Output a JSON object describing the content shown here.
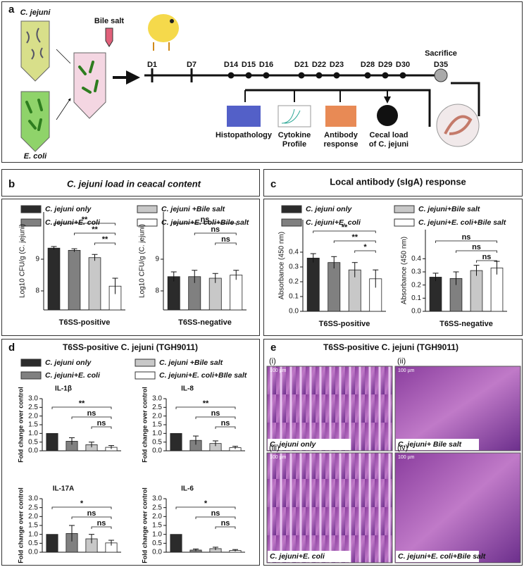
{
  "panel_a": {
    "label": "a",
    "strain": "C. jejuni",
    "bile": "Bile salt",
    "ecoli": "E. coli",
    "days": [
      "D1",
      "D7",
      "D14",
      "D15",
      "D16",
      "D21",
      "D22",
      "D23",
      "D28",
      "D29",
      "D30"
    ],
    "sacrifice": "Sacrifice",
    "end_day": "D35",
    "outputs": [
      [
        "Histopathology"
      ],
      [
        "Cytokine",
        "Profile"
      ],
      [
        "Antibody",
        "response"
      ],
      [
        "Cecal load",
        "of C. jejuni"
      ]
    ]
  },
  "panels": {
    "b": {
      "label": "b",
      "title": "C. jejuni load in ceacal content",
      "legend": [
        {
          "name": "C. jejuni only",
          "color": "#2b2b2b"
        },
        {
          "name": "C. jejuni +Bile salt",
          "color": "#c8c8c8"
        },
        {
          "name": "C. jejuni+E. coli",
          "color": "#808080"
        },
        {
          "name": "C. jejuni+E. coli+Bile salt",
          "color": "#ffffff"
        }
      ]
    },
    "c": {
      "label": "c",
      "title": "Local antibody (sIgA) response",
      "legend": [
        {
          "name": "C. jejuni only",
          "color": "#2b2b2b"
        },
        {
          "name": "C. jejuni+Bile salt",
          "color": "#c8c8c8"
        },
        {
          "name": "C. jejuni+E. coli",
          "color": "#808080"
        },
        {
          "name": "C. jejuni+E. coli+Bile salt",
          "color": "#ffffff"
        }
      ]
    },
    "d": {
      "label": "d",
      "title": "T6SS-positive  C. jejuni (TGH9011)",
      "legend": [
        {
          "name": "C. jejuni only",
          "color": "#2b2b2b"
        },
        {
          "name": "C. jejuni +Bile salt",
          "color": "#c8c8c8"
        },
        {
          "name": "C. jejuni+E. coli",
          "color": "#808080"
        },
        {
          "name": "C. jejuni+E. coli+BIle salt",
          "color": "#ffffff"
        }
      ]
    }
  },
  "panel_e": {
    "label": "e",
    "title": "T6SS-positive  C. jejuni (TGH9011)",
    "scale": "100 µm",
    "images": [
      {
        "index": "(i)",
        "caption": "C. jejuni only"
      },
      {
        "index": "(ii)",
        "caption": "C. jejuni+ Bile salt"
      },
      {
        "index": "(iii)",
        "caption": "C. jejuni+E. coli"
      },
      {
        "index": "(iv)",
        "caption": "C. jejuni+E. coli+Bile salt"
      }
    ]
  },
  "chart_data": [
    {
      "type": "bar",
      "categories": [
        null,
        null,
        null,
        null
      ],
      "values": [
        9.35,
        9.28,
        9.05,
        8.15
      ],
      "errors": [
        0.05,
        0.05,
        0.1,
        0.25
      ],
      "colors": [
        "#2b2b2b",
        "#808080",
        "#c8c8c8",
        "#ffffff"
      ],
      "ylim": [
        7.4,
        10.4
      ],
      "yticks": [
        8,
        9
      ],
      "y_label": "Log10 CFU/g (C. jejuni)",
      "x_label": "T6SS-positive",
      "annotations": [
        "**",
        "**",
        "**"
      ]
    },
    {
      "type": "bar",
      "categories": [
        null,
        null,
        null,
        null
      ],
      "values": [
        8.45,
        8.45,
        8.4,
        8.5
      ],
      "errors": [
        0.15,
        0.2,
        0.15,
        0.15
      ],
      "colors": [
        "#2b2b2b",
        "#808080",
        "#c8c8c8",
        "#ffffff"
      ],
      "ylim": [
        7.4,
        10.4
      ],
      "yticks": [
        8,
        9
      ],
      "y_label": "Log10 CFU/g (C. jejuni)",
      "x_label": "T6SS-negative",
      "annotations": [
        "ns",
        "ns",
        "ns"
      ]
    },
    {
      "type": "bar",
      "categories": [
        null,
        null,
        null,
        null
      ],
      "values": [
        0.36,
        0.33,
        0.28,
        0.22
      ],
      "errors": [
        0.03,
        0.04,
        0.05,
        0.06
      ],
      "colors": [
        "#2b2b2b",
        "#808080",
        "#c8c8c8",
        "#ffffff"
      ],
      "ylim": [
        0,
        0.6
      ],
      "yticks": [
        {
          "value": 0,
          "label": "0.0"
        },
        0.1,
        0.2,
        0.3,
        0.4
      ],
      "y_label": "Absorbance (450 nm)",
      "x_label": "T6SS-positive",
      "annotations": [
        "**",
        "**",
        "*"
      ]
    },
    {
      "type": "bar",
      "categories": [
        null,
        null,
        null,
        null
      ],
      "values": [
        0.26,
        0.25,
        0.31,
        0.33
      ],
      "errors": [
        0.03,
        0.05,
        0.04,
        0.05
      ],
      "colors": [
        "#2b2b2b",
        "#808080",
        "#c8c8c8",
        "#ffffff"
      ],
      "ylim": [
        0,
        0.6
      ],
      "yticks": [
        {
          "value": 0,
          "label": "0.0"
        },
        0.1,
        0.2,
        0.3,
        0.4
      ],
      "y_label": "Absorbance (450 nm)",
      "x_label": "T6SS-negative",
      "annotations": [
        "ns",
        "ns",
        "ns"
      ]
    },
    {
      "type": "bar",
      "title": "IL-1β",
      "categories": [
        null,
        null,
        null,
        null
      ],
      "values": [
        1.0,
        0.55,
        0.35,
        0.2
      ],
      "errors": [
        0,
        0.2,
        0.15,
        0.1
      ],
      "colors": [
        "#2b2b2b",
        "#808080",
        "#c8c8c8",
        "#ffffff"
      ],
      "ylim": [
        0,
        3
      ],
      "yticks": [
        {
          "value": 0,
          "label": "0.0"
        },
        0.5,
        {
          "value": 1,
          "label": "1.0"
        },
        1.5,
        {
          "value": 2,
          "label": "2.0"
        },
        2.5,
        {
          "value": 3,
          "label": "3.0"
        }
      ],
      "y_label": "Fold change over control",
      "annotations": [
        "**",
        "ns",
        "ns"
      ]
    },
    {
      "type": "bar",
      "title": "IL-8",
      "categories": [
        null,
        null,
        null,
        null
      ],
      "values": [
        1.0,
        0.6,
        0.42,
        0.18
      ],
      "errors": [
        0,
        0.25,
        0.15,
        0.08
      ],
      "colors": [
        "#2b2b2b",
        "#808080",
        "#c8c8c8",
        "#ffffff"
      ],
      "ylim": [
        0,
        3
      ],
      "yticks": [
        {
          "value": 0,
          "label": "0.0"
        },
        0.5,
        {
          "value": 1,
          "label": "1.0"
        },
        1.5,
        {
          "value": 2,
          "label": "2.0"
        },
        2.5,
        {
          "value": 3,
          "label": "3.0"
        }
      ],
      "y_label": "Fold change over control",
      "annotations": [
        "**",
        "ns",
        "ns"
      ]
    },
    {
      "type": "bar",
      "title": "IL-17A",
      "categories": [
        null,
        null,
        null,
        null
      ],
      "values": [
        1.0,
        1.05,
        0.75,
        0.52
      ],
      "errors": [
        0,
        0.45,
        0.25,
        0.15
      ],
      "colors": [
        "#2b2b2b",
        "#808080",
        "#c8c8c8",
        "#ffffff"
      ],
      "ylim": [
        0,
        3
      ],
      "yticks": [
        {
          "value": 0,
          "label": "0.0"
        },
        0.5,
        {
          "value": 1,
          "label": "1.0"
        },
        1.5,
        {
          "value": 2,
          "label": "2.0"
        },
        2.5,
        {
          "value": 3,
          "label": "3.0"
        }
      ],
      "y_label": "Fold change over control",
      "annotations": [
        "*",
        "ns",
        "ns"
      ]
    },
    {
      "type": "bar",
      "title": "IL-6",
      "categories": [
        null,
        null,
        null,
        null
      ],
      "values": [
        1.0,
        0.12,
        0.2,
        0.1
      ],
      "errors": [
        0,
        0.06,
        0.08,
        0.05
      ],
      "colors": [
        "#2b2b2b",
        "#808080",
        "#c8c8c8",
        "#ffffff"
      ],
      "ylim": [
        0,
        3
      ],
      "yticks": [
        {
          "value": 0,
          "label": "0.0"
        },
        0.5,
        {
          "value": 1,
          "label": "1.0"
        },
        1.5,
        {
          "value": 2,
          "label": "2.0"
        },
        2.5,
        {
          "value": 3,
          "label": "3.0"
        }
      ],
      "y_label": "Fold change over control",
      "annotations": [
        "*",
        "ns",
        "ns"
      ]
    }
  ]
}
